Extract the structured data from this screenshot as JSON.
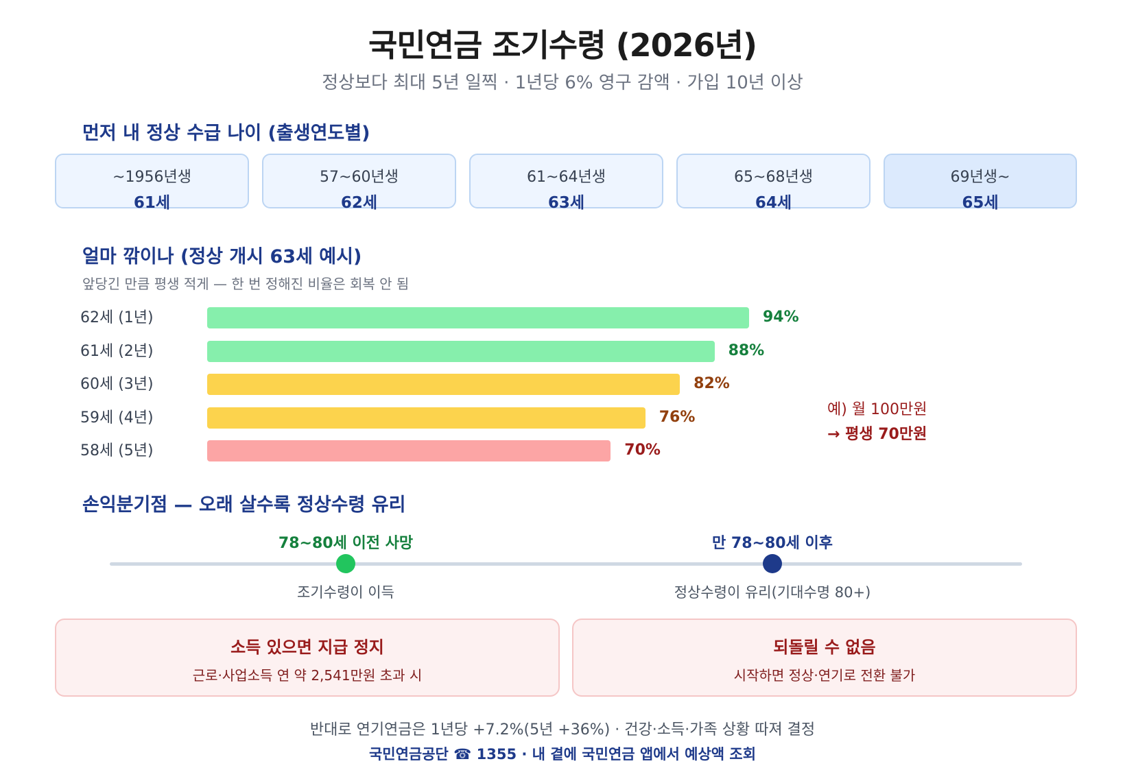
{
  "title": "국민연금 조기수령 (2026년)",
  "subtitle": "정상보다 최대 5년 일찍 · 1년당 6% 영구 감액 · 가입 10년 이상",
  "section1": {
    "heading": "먼저 내 정상 수급 나이 (출생연도별)",
    "cards": [
      {
        "cohort": "~1956년생",
        "age": "61세"
      },
      {
        "cohort": "57~60년생",
        "age": "62세"
      },
      {
        "cohort": "61~64년생",
        "age": "63세"
      },
      {
        "cohort": "65~68년생",
        "age": "64세"
      },
      {
        "cohort": "69년생~",
        "age": "65세"
      }
    ]
  },
  "section2": {
    "heading": "얼마 깎이나 (정상 개시 63세 예시)",
    "note": "앞당긴 만큼 평생 적게 — 한 번 정해진 비율은 회복 안 됨",
    "example_line1": "예) 월 100만원",
    "example_line2": "→ 평생 70만원"
  },
  "chart_data": {
    "type": "bar",
    "orientation": "horizontal",
    "categories": [
      "62세 (1년)",
      "61세 (2년)",
      "60세 (3년)",
      "59세 (4년)",
      "58세 (5년)"
    ],
    "values": [
      94,
      88,
      82,
      76,
      70
    ],
    "value_labels": [
      "94%",
      "88%",
      "82%",
      "76%",
      "70%"
    ],
    "bar_colors": [
      "#86efac",
      "#86efac",
      "#fcd34d",
      "#fcd34d",
      "#fca5a5"
    ],
    "label_colors": [
      "#15803d",
      "#15803d",
      "#92400e",
      "#92400e",
      "#991b1b"
    ],
    "xlim": [
      0,
      100
    ]
  },
  "section3": {
    "heading": "손익분기점 — 오래 살수록 정상수령 유리",
    "left": {
      "head": "78~80세 이전 사망",
      "sub": "조기수령이 이득",
      "color": "#22c55e",
      "head_color": "#15803d"
    },
    "right": {
      "head": "만 78~80세 이후",
      "sub": "정상수령이 유리(기대수명 80+)",
      "color": "#1e3a8a",
      "head_color": "#1e3a8a"
    }
  },
  "warnings": [
    {
      "title": "소득 있으면 지급 정지",
      "desc": "근로·사업소득 연 약 2,541만원 초과 시"
    },
    {
      "title": "되돌릴 수 없음",
      "desc": "시작하면 정상·연기로 전환 불가"
    }
  ],
  "footer": {
    "line1": "반대로 연기연금은 1년당 +7.2%(5년 +36%) · 건강·소득·가족 상황 따져 결정",
    "line2": "국민연금공단 ☎ 1355 · 내 곁에 국민연금 앱에서 예상액 조회"
  }
}
